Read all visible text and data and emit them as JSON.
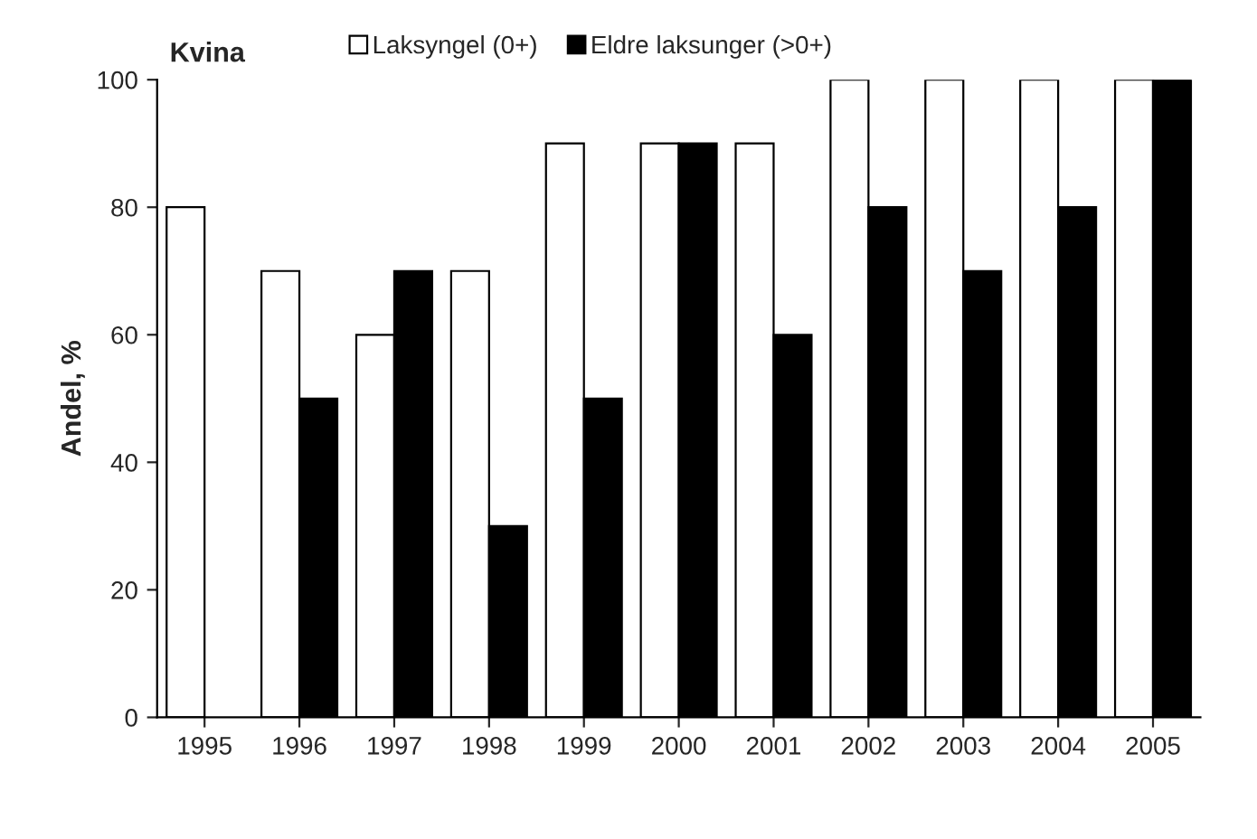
{
  "chart_data": {
    "type": "bar",
    "title": "Kvina",
    "ylabel": "Andel, %",
    "categories": [
      "1995",
      "1996",
      "1997",
      "1998",
      "1999",
      "2000",
      "2001",
      "2002",
      "2003",
      "2004",
      "2005"
    ],
    "series": [
      {
        "name": "Laksyngel (0+)",
        "color": "#ffffff",
        "values": [
          80,
          70,
          60,
          70,
          90,
          90,
          90,
          100,
          100,
          100,
          100
        ]
      },
      {
        "name": "Eldre laksunger (>0+)",
        "color": "#000000",
        "values": [
          null,
          50,
          70,
          30,
          50,
          90,
          60,
          80,
          70,
          80,
          100
        ]
      }
    ],
    "ylim": [
      0,
      100
    ],
    "yticks": [
      0,
      20,
      40,
      60,
      80,
      100
    ],
    "grid": false,
    "legend": "top"
  }
}
